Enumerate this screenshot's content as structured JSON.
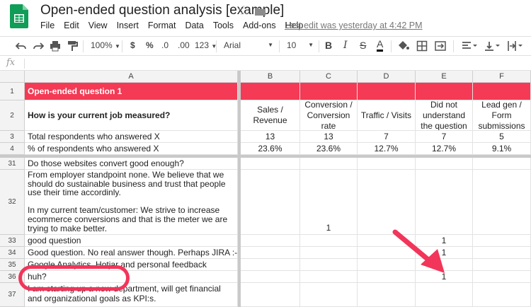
{
  "doc": {
    "title": "Open-ended question analysis [example]",
    "last_edit": "Last edit was yesterday at 4:42 PM",
    "brand_color": "#0f9d58",
    "star_icon": "star-icon",
    "folder_icon": "folder-icon"
  },
  "menu": [
    "File",
    "Edit",
    "View",
    "Insert",
    "Format",
    "Data",
    "Tools",
    "Add-ons",
    "Help"
  ],
  "toolbar": {
    "zoom": "100%",
    "currency": "$",
    "percent": "%",
    "dec_less": ".0",
    "dec_more": ".00",
    "more_formats": "123",
    "font": "Arial",
    "size": "10",
    "bold": "B",
    "italic": "I",
    "strike": "S",
    "textcolor": "A"
  },
  "formula": {
    "fx": "fx",
    "value": ""
  },
  "columns": [
    "A",
    "B",
    "C",
    "D",
    "E",
    "F"
  ],
  "rows": {
    "r1": {
      "num": "1",
      "a": "Open-ended question 1"
    },
    "r2": {
      "num": "2",
      "a": "How is your current job measured?",
      "b": "Sales / Revenue",
      "c": "Conversion / Conversion rate",
      "d": "Traffic / Visits",
      "e": "Did not understand the question",
      "f": "Lead gen / Form submissions"
    },
    "r3": {
      "num": "3",
      "a": "Total respondents who answered X",
      "b": "13",
      "c": "13",
      "d": "7",
      "e": "7",
      "f": "5"
    },
    "r4": {
      "num": "4",
      "a": "% of respondents who answered X",
      "b": "23.6%",
      "c": "23.6%",
      "d": "12.7%",
      "e": "12.7%",
      "f": "9.1%"
    },
    "r31": {
      "num": "31",
      "a": "Do those websites convert good enough?"
    },
    "r32": {
      "num": "32",
      "a": "From employer standpoint none. We believe that we should do sustainable business and trust that people use their time accordinly.\n\nIn my current team/customer: We strive to increase ecommerce conversions and that is the meter we are trying to make better.",
      "c": "1"
    },
    "r33": {
      "num": "33",
      "a": "good question",
      "e": "1"
    },
    "r34": {
      "num": "34",
      "a": "Good question. No real answer though. Perhaps JIRA :-P",
      "e": "1"
    },
    "r35": {
      "num": "35",
      "a": "Google Analytics, Hotjar and personal feedback"
    },
    "r36": {
      "num": "36",
      "a": "huh?",
      "e": "1"
    },
    "r37": {
      "num": "37",
      "a": "I am starting up a new department, will get financial and organizational goals as KPI:s."
    }
  },
  "colors": {
    "header_red": "#f43a54",
    "annotation": "#f2355a"
  }
}
